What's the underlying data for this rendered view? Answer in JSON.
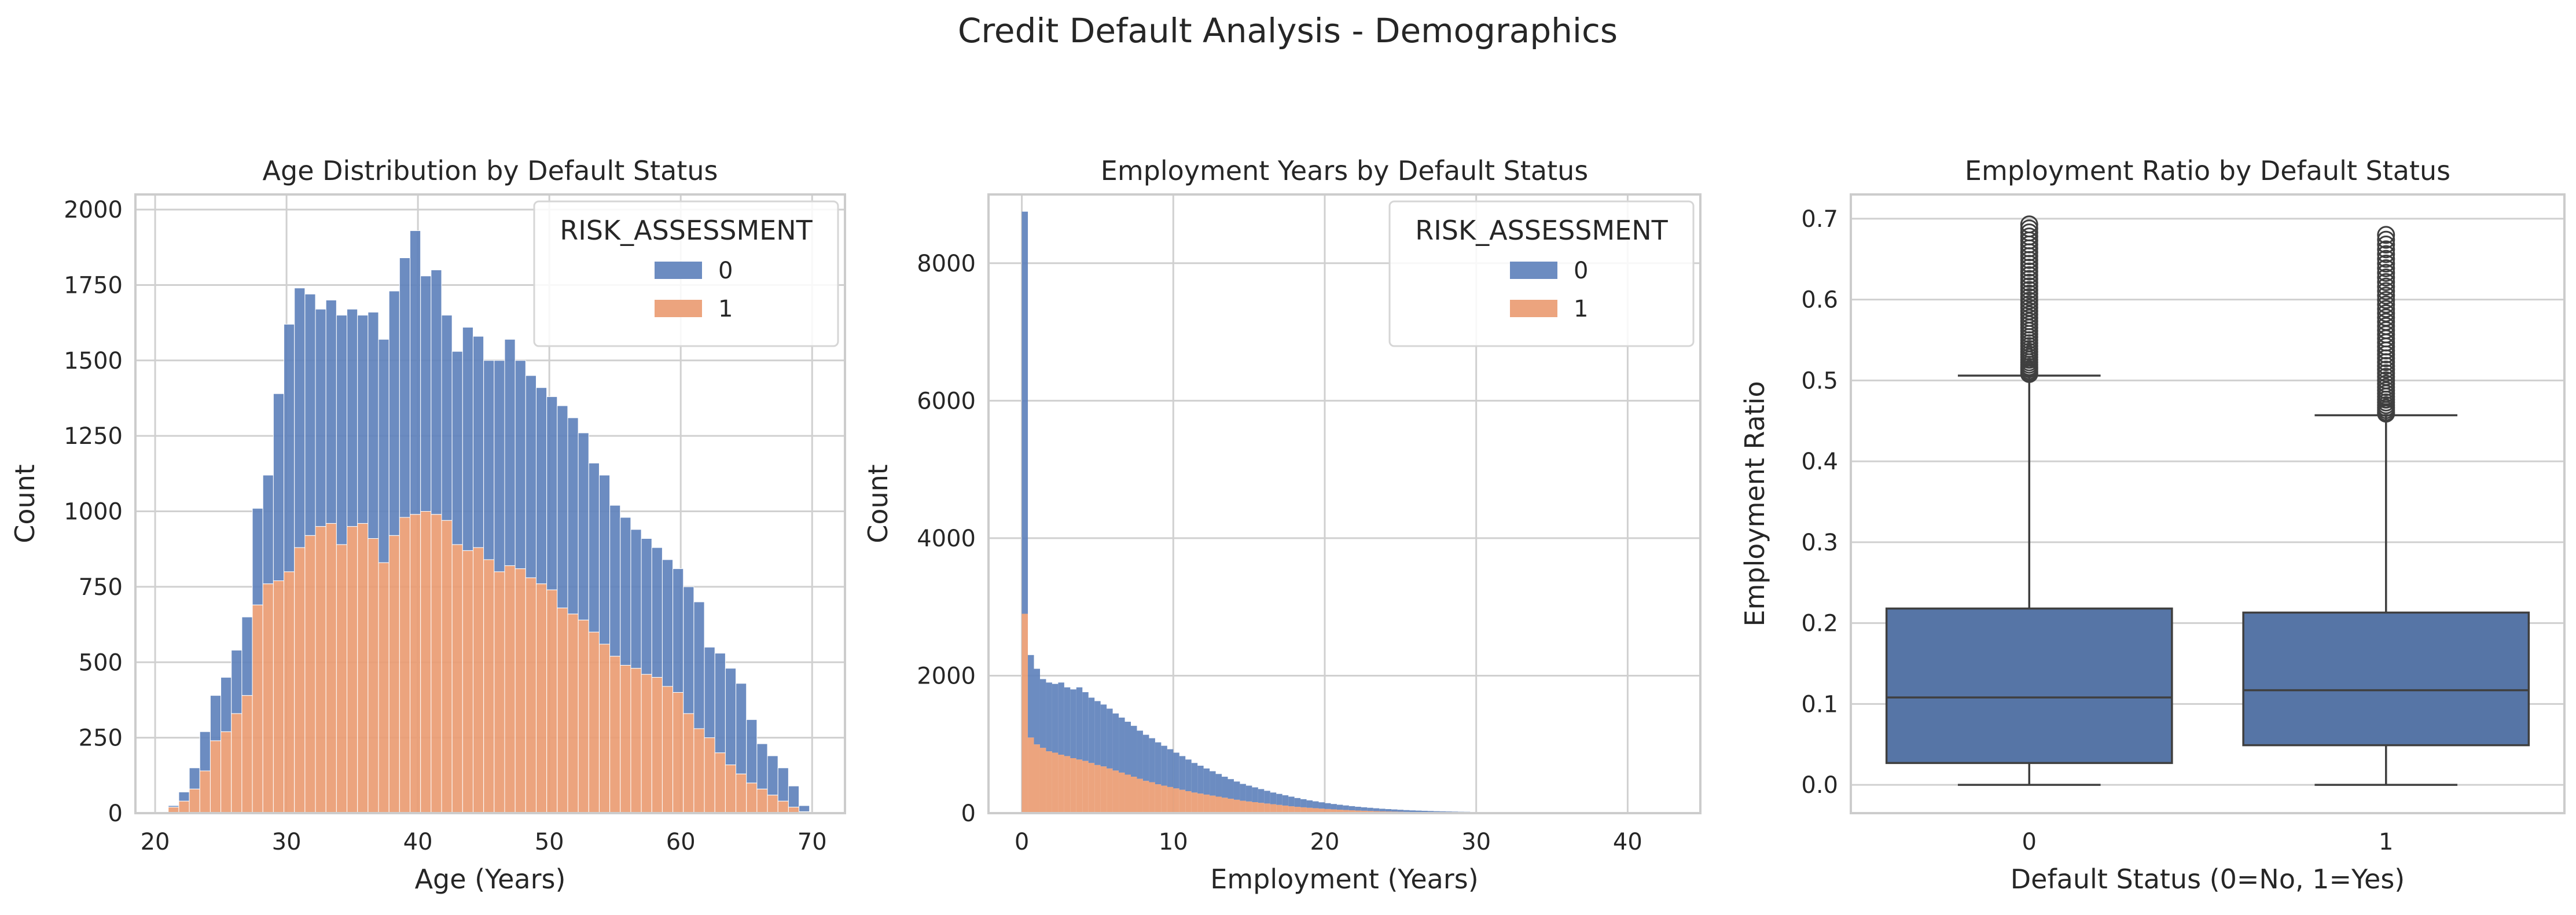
{
  "figure": {
    "title": "Credit Default Analysis - Demographics"
  },
  "colors": {
    "class0": "#5c7fba",
    "class1": "#ea9a70",
    "box": "#5675a6",
    "boxline": "#3f3f3f"
  },
  "chart_data": [
    {
      "type": "histogram-stacked",
      "title": "Age Distribution by Default Status",
      "xlabel": "Age (Years)",
      "ylabel": "Count",
      "xlim": [
        18.5,
        72.5
      ],
      "ylim": [
        0,
        2050
      ],
      "xticks": [
        20,
        30,
        40,
        50,
        60,
        70
      ],
      "yticks": [
        0,
        250,
        500,
        750,
        1000,
        1250,
        1500,
        1750,
        2000
      ],
      "grid": true,
      "legend": {
        "title": "RISK_ASSESSMENT",
        "position": "top-right",
        "entries": [
          "0",
          "1"
        ]
      },
      "bin_edges": [
        21.0,
        21.8,
        22.6,
        23.4,
        24.2,
        25.0,
        25.8,
        26.6,
        27.4,
        28.2,
        29.0,
        29.8,
        30.6,
        31.4,
        32.2,
        33.0,
        33.8,
        34.6,
        35.4,
        36.2,
        37.0,
        37.8,
        38.6,
        39.4,
        40.2,
        41.0,
        41.8,
        42.6,
        43.4,
        44.2,
        45.0,
        45.8,
        46.6,
        47.4,
        48.2,
        49.0,
        49.8,
        50.6,
        51.4,
        52.2,
        53.0,
        53.8,
        54.6,
        55.4,
        56.2,
        57.0,
        57.8,
        58.6,
        59.4,
        60.2,
        61.0,
        61.8,
        62.6,
        63.4,
        64.2,
        65.0,
        65.8,
        66.6,
        67.4,
        68.2,
        69.0,
        69.8
      ],
      "series": [
        {
          "name": "1",
          "values": [
            20,
            40,
            80,
            140,
            240,
            270,
            330,
            390,
            690,
            760,
            770,
            800,
            880,
            920,
            950,
            960,
            890,
            950,
            960,
            910,
            830,
            920,
            980,
            990,
            1000,
            990,
            970,
            890,
            870,
            880,
            840,
            800,
            820,
            810,
            780,
            760,
            740,
            680,
            660,
            640,
            600,
            560,
            520,
            490,
            480,
            460,
            450,
            420,
            400,
            330,
            280,
            250,
            200,
            160,
            130,
            100,
            80,
            60,
            40,
            20,
            5
          ]
        },
        {
          "name": "0",
          "values": [
            5,
            30,
            70,
            130,
            150,
            180,
            210,
            260,
            320,
            360,
            620,
            820,
            860,
            800,
            720,
            740,
            760,
            720,
            690,
            750,
            740,
            810,
            860,
            940,
            780,
            810,
            680,
            640,
            740,
            700,
            660,
            700,
            750,
            690,
            670,
            650,
            640,
            670,
            650,
            620,
            560,
            560,
            500,
            490,
            460,
            450,
            430,
            420,
            410,
            420,
            420,
            300,
            330,
            320,
            300,
            210,
            150,
            130,
            110,
            70,
            20
          ]
        }
      ]
    },
    {
      "type": "histogram-stacked",
      "title": "Employment Years by Default Status",
      "xlabel": "Employment (Years)",
      "ylabel": "Count",
      "xlim": [
        -2.2,
        44.8
      ],
      "ylim": [
        0,
        9000
      ],
      "xticks": [
        0,
        10,
        20,
        30,
        40
      ],
      "yticks": [
        0,
        2000,
        4000,
        6000,
        8000
      ],
      "grid": true,
      "legend": {
        "title": "RISK_ASSESSMENT",
        "position": "top-right",
        "entries": [
          "0",
          "1"
        ]
      },
      "bin_edges": [
        0.0,
        0.4,
        0.8,
        1.2,
        1.6,
        2.0,
        2.4,
        2.8,
        3.2,
        3.6,
        4.0,
        4.4,
        4.8,
        5.2,
        5.6,
        6.0,
        6.4,
        6.8,
        7.2,
        7.6,
        8.0,
        8.4,
        8.8,
        9.2,
        9.6,
        10.0,
        10.4,
        10.8,
        11.2,
        11.6,
        12.0,
        12.4,
        12.8,
        13.2,
        13.6,
        14.0,
        14.4,
        14.8,
        15.2,
        15.6,
        16.0,
        16.4,
        16.8,
        17.2,
        17.6,
        18.0,
        18.4,
        18.8,
        19.2,
        19.6,
        20.0,
        20.4,
        20.8,
        21.2,
        21.6,
        22.0,
        22.4,
        22.8,
        23.2,
        23.6,
        24.0,
        24.4,
        24.8,
        25.2,
        25.6,
        26.0,
        26.4,
        26.8,
        27.2,
        27.6,
        28.0,
        28.4,
        28.8,
        29.2,
        29.6,
        30.0,
        30.4,
        30.8,
        31.2,
        31.6,
        32.0,
        32.4,
        32.8,
        33.2,
        33.6,
        34.0,
        34.4,
        34.8,
        35.2,
        35.6,
        36.0,
        36.4,
        36.8,
        37.2,
        37.6,
        38.0,
        38.4,
        38.8,
        39.2,
        39.6,
        40.0,
        40.4,
        40.8,
        41.2,
        41.6,
        42.0,
        42.4,
        42.8,
        43.2
      ],
      "series": [
        {
          "name": "1",
          "values": [
            2900,
            1100,
            1000,
            950,
            900,
            880,
            850,
            830,
            800,
            780,
            760,
            730,
            700,
            680,
            650,
            620,
            590,
            560,
            530,
            500,
            470,
            450,
            420,
            400,
            380,
            360,
            340,
            320,
            300,
            285,
            270,
            255,
            240,
            225,
            210,
            195,
            180,
            170,
            160,
            150,
            140,
            130,
            120,
            110,
            100,
            92,
            85,
            78,
            72,
            66,
            60,
            55,
            50,
            46,
            42,
            38,
            35,
            32,
            29,
            26,
            24,
            22,
            20,
            18,
            16,
            15,
            14,
            13,
            12,
            11,
            10,
            9,
            8,
            8,
            7,
            7,
            6,
            6,
            5,
            5,
            5,
            4,
            4,
            4,
            3,
            3,
            3,
            3,
            2,
            2,
            2,
            2,
            2,
            2,
            1,
            1,
            1,
            1,
            1,
            1,
            1,
            1,
            1,
            1,
            1,
            1,
            1,
            1
          ]
        },
        {
          "name": "0",
          "values": [
            5850,
            1200,
            1100,
            1000,
            1000,
            1000,
            1050,
            1000,
            1000,
            1050,
            1000,
            950,
            930,
            900,
            870,
            830,
            800,
            770,
            740,
            700,
            670,
            640,
            610,
            580,
            550,
            520,
            490,
            460,
            430,
            405,
            380,
            355,
            330,
            305,
            285,
            265,
            245,
            230,
            215,
            200,
            185,
            170,
            160,
            150,
            140,
            128,
            118,
            108,
            100,
            92,
            85,
            78,
            72,
            66,
            60,
            55,
            50,
            46,
            42,
            38,
            35,
            32,
            29,
            26,
            24,
            22,
            20,
            18,
            16,
            15,
            14,
            13,
            12,
            11,
            10,
            9,
            8,
            8,
            7,
            7,
            6,
            6,
            5,
            5,
            5,
            4,
            4,
            4,
            3,
            3,
            3,
            3,
            2,
            2,
            2,
            2,
            2,
            2,
            1,
            1,
            1,
            1,
            1,
            1,
            1,
            1,
            1,
            1
          ]
        }
      ]
    },
    {
      "type": "box",
      "title": "Employment Ratio by Default Status",
      "xlabel": "Default Status (0=No, 1=Yes)",
      "ylabel": "Employment Ratio",
      "categories": [
        "0",
        "1"
      ],
      "ylim": [
        -0.035,
        0.73
      ],
      "yticks": [
        "0.0",
        "0.1",
        "0.2",
        "0.3",
        "0.4",
        "0.5",
        "0.6",
        "0.7"
      ],
      "grid": true,
      "boxes": [
        {
          "category": "0",
          "whisker_low": 0.0,
          "q1": 0.027,
          "median": 0.108,
          "q3": 0.218,
          "whisker_high": 0.506,
          "outliers_min": 0.508,
          "outliers_max": 0.693
        },
        {
          "category": "1",
          "whisker_low": 0.0,
          "q1": 0.049,
          "median": 0.117,
          "q3": 0.213,
          "whisker_high": 0.457,
          "outliers_min": 0.459,
          "outliers_max": 0.68
        }
      ]
    }
  ]
}
